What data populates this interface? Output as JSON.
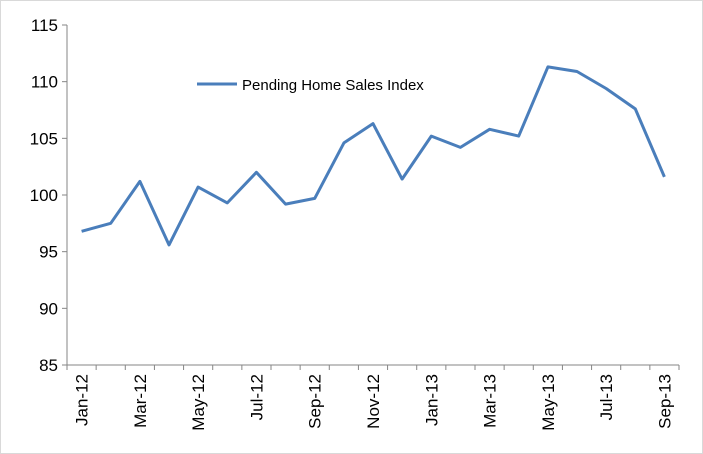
{
  "chart_data": {
    "type": "line",
    "title": "",
    "xlabel": "",
    "ylabel": "",
    "ylim": [
      85,
      115
    ],
    "yticks": [
      85,
      90,
      95,
      100,
      105,
      110,
      115
    ],
    "grid": false,
    "legend_position": "top-left",
    "categories": [
      "Jan-12",
      "Feb-12",
      "Mar-12",
      "Apr-12",
      "May-12",
      "Jun-12",
      "Jul-12",
      "Aug-12",
      "Sep-12",
      "Oct-12",
      "Nov-12",
      "Dec-12",
      "Jan-13",
      "Feb-13",
      "Mar-13",
      "Apr-13",
      "May-13",
      "Jun-13",
      "Jul-13",
      "Aug-13",
      "Sep-13"
    ],
    "xtick_labels": [
      "Jan-12",
      "Mar-12",
      "May-12",
      "Jul-12",
      "Sep-12",
      "Nov-12",
      "Jan-13",
      "Mar-13",
      "May-13",
      "Jul-13",
      "Sep-13"
    ],
    "series": [
      {
        "name": "Pending Home Sales Index",
        "color": "#4a7ebb",
        "values": [
          96.8,
          97.5,
          101.2,
          95.6,
          100.7,
          99.3,
          102.0,
          99.2,
          99.7,
          104.6,
          106.3,
          101.4,
          105.2,
          104.2,
          105.8,
          105.2,
          111.3,
          110.9,
          109.4,
          107.6,
          101.6
        ]
      }
    ]
  }
}
